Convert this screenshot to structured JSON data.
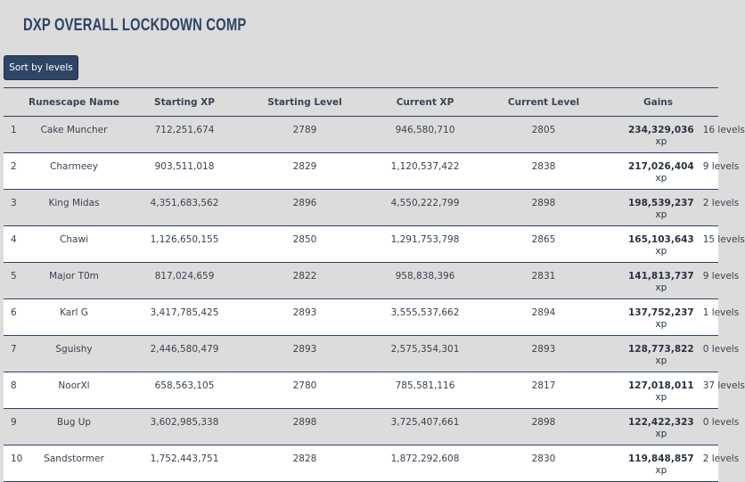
{
  "title": "DXP OVERALL LOCKDOWN COMP",
  "sort_button": "Sort by levels",
  "columns": [
    "",
    "Runescape Name",
    "Starting XP",
    "Starting Level",
    "Current XP",
    "Current Level",
    "Gains"
  ],
  "xp_unit": "xp",
  "rows": [
    {
      "rank": "1",
      "name": "Cake Muncher",
      "start_xp": "712,251,674",
      "start_level": "2789",
      "current_xp": "946,580,710",
      "current_level": "2805",
      "gain_xp": "234,329,036",
      "gain_levels": "16 levels"
    },
    {
      "rank": "2",
      "name": "Charmeey",
      "start_xp": "903,511,018",
      "start_level": "2829",
      "current_xp": "1,120,537,422",
      "current_level": "2838",
      "gain_xp": "217,026,404",
      "gain_levels": "9 levels"
    },
    {
      "rank": "3",
      "name": "King Midas",
      "start_xp": "4,351,683,562",
      "start_level": "2896",
      "current_xp": "4,550,222,799",
      "current_level": "2898",
      "gain_xp": "198,539,237",
      "gain_levels": "2 levels"
    },
    {
      "rank": "4",
      "name": "Chawi",
      "start_xp": "1,126,650,155",
      "start_level": "2850",
      "current_xp": "1,291,753,798",
      "current_level": "2865",
      "gain_xp": "165,103,643",
      "gain_levels": "15 levels"
    },
    {
      "rank": "5",
      "name": "Major T0m",
      "start_xp": "817,024,659",
      "start_level": "2822",
      "current_xp": "958,838,396",
      "current_level": "2831",
      "gain_xp": "141,813,737",
      "gain_levels": "9 levels"
    },
    {
      "rank": "6",
      "name": "Karl G",
      "start_xp": "3,417,785,425",
      "start_level": "2893",
      "current_xp": "3,555,537,662",
      "current_level": "2894",
      "gain_xp": "137,752,237",
      "gain_levels": "1 levels"
    },
    {
      "rank": "7",
      "name": "Sguishy",
      "start_xp": "2,446,580,479",
      "start_level": "2893",
      "current_xp": "2,575,354,301",
      "current_level": "2893",
      "gain_xp": "128,773,822",
      "gain_levels": "0 levels"
    },
    {
      "rank": "8",
      "name": "NoorXl",
      "start_xp": "658,563,105",
      "start_level": "2780",
      "current_xp": "785,581,116",
      "current_level": "2817",
      "gain_xp": "127,018,011",
      "gain_levels": "37 levels"
    },
    {
      "rank": "9",
      "name": "Bug Up",
      "start_xp": "3,602,985,338",
      "start_level": "2898",
      "current_xp": "3,725,407,661",
      "current_level": "2898",
      "gain_xp": "122,422,323",
      "gain_levels": "0 levels"
    },
    {
      "rank": "10",
      "name": "Sandstormer",
      "start_xp": "1,752,443,751",
      "start_level": "2828",
      "current_xp": "1,872,292,608",
      "current_level": "2830",
      "gain_xp": "119,848,857",
      "gain_levels": "2 levels"
    }
  ]
}
